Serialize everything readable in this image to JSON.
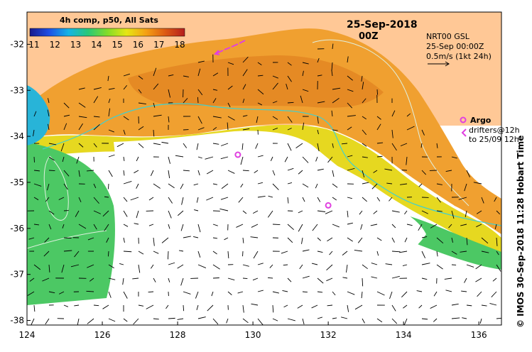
{
  "map": {
    "title": "4h comp, p50, All Sats",
    "date": "25-Sep-2018",
    "time": "00Z",
    "product": [
      "NRT00 GSL",
      "25-Sep 00:00Z",
      "0.5m/s (1kt 24h)"
    ],
    "argo_label": "Argo",
    "drifters_label": [
      "drifters@12h",
      "to 25/09 12h"
    ],
    "credit": "© IMOS 30-Sep-2018 11:28 Hobart Time"
  },
  "colorbar": {
    "ticks": [
      "11",
      "12",
      "13",
      "14",
      "15",
      "16",
      "17",
      "18"
    ],
    "min": 11,
    "max": 18,
    "stops": [
      "#1a1a8c",
      "#1e50e6",
      "#14b4e6",
      "#28c878",
      "#82dc28",
      "#e6e614",
      "#f5a014",
      "#dc5a14",
      "#b41e1e"
    ]
  },
  "axes": {
    "lon_labels": [
      "124",
      "126",
      "128",
      "130",
      "132",
      "134",
      "136"
    ],
    "lat_labels": [
      "-32",
      "-33",
      "-34",
      "-35",
      "-36",
      "-37",
      "-38"
    ]
  },
  "colors": {
    "land": "#ffc896",
    "cloud": "#ffffff",
    "warm": "#f0a030",
    "hot": "#e08020",
    "mid": "#e6d820",
    "cool": "#4cc864",
    "cold": "#28b4d8",
    "contour_thin": "#e0f0e0",
    "contour_cyan": "#40d0d0",
    "argo": "#e040e0",
    "vector": "#000000"
  },
  "argo_floats": [
    {
      "lon": 129.6,
      "lat": -34.4
    },
    {
      "lon": 132.0,
      "lat": -35.5
    }
  ]
}
